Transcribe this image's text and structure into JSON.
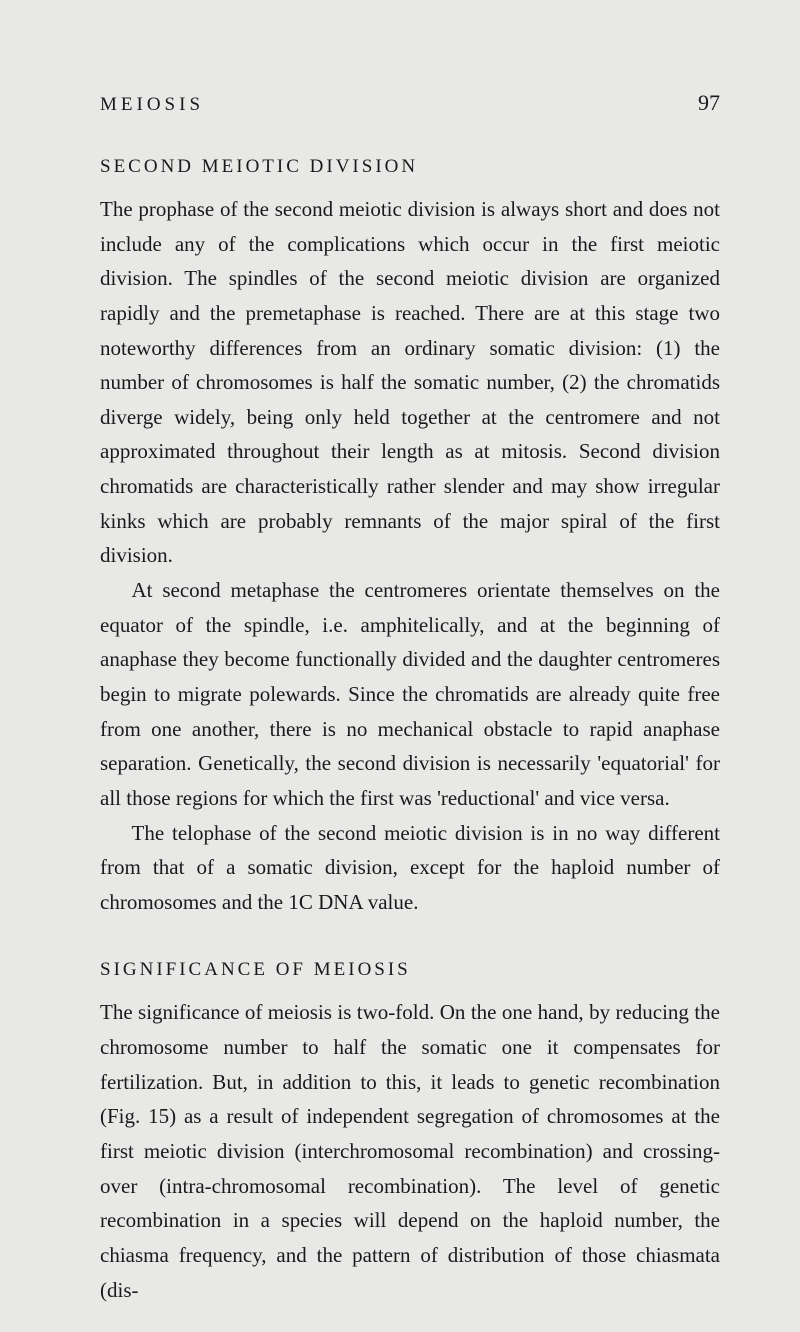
{
  "header": {
    "running_header": "MEIOSIS",
    "page_number": "97"
  },
  "sections": [
    {
      "heading": "SECOND MEIOTIC DIVISION",
      "paragraphs": [
        {
          "indent": false,
          "text": "The prophase of the second meiotic division is always short and does not include any of the complications which occur in the first meiotic division. The spindles of the second meiotic division are organized rapidly and the premetaphase is reached. There are at this stage two noteworthy differences from an ordinary somatic division: (1) the number of chromosomes is half the somatic number, (2) the chromatids diverge widely, being only held together at the centromere and not approximated throughout their length as at mitosis. Second division chromatids are characteristically rather slender and may show irregular kinks which are probably remnants of the major spiral of the first division."
        },
        {
          "indent": true,
          "text": "At second metaphase the centromeres orientate themselves on the equator of the spindle, i.e. amphitelically, and at the beginning of anaphase they become functionally divided and the daughter centromeres begin to migrate polewards. Since the chromatids are already quite free from one another, there is no mechanical obstacle to rapid anaphase separation. Genetically, the second division is necessarily 'equatorial' for all those regions for which the first was 'reductional' and vice versa."
        },
        {
          "indent": true,
          "text": "The telophase of the second meiotic division is in no way different from that of a somatic division, except for the haploid number of chromosomes and the 1C DNA value."
        }
      ]
    },
    {
      "heading": "SIGNIFICANCE OF MEIOSIS",
      "paragraphs": [
        {
          "indent": false,
          "text": "The significance of meiosis is two-fold. On the one hand, by reducing the chromosome number to half the somatic one it compensates for fertilization. But, in addition to this, it leads to genetic recombination (Fig. 15) as a result of independent segregation of chromosomes at the first meiotic division (interchromosomal recombination) and crossing-over (intra-chromosomal recombination). The level of genetic recombination in a species will depend on the haploid number, the chiasma frequency, and the pattern of distribution of those chiasmata (dis-"
        }
      ]
    }
  ],
  "style": {
    "background_color": "#e8e9e7",
    "text_color": "#1a1a1a",
    "body_font_size": 21,
    "heading_font_size": 19,
    "page_number_font_size": 22,
    "line_height": 1.65
  }
}
